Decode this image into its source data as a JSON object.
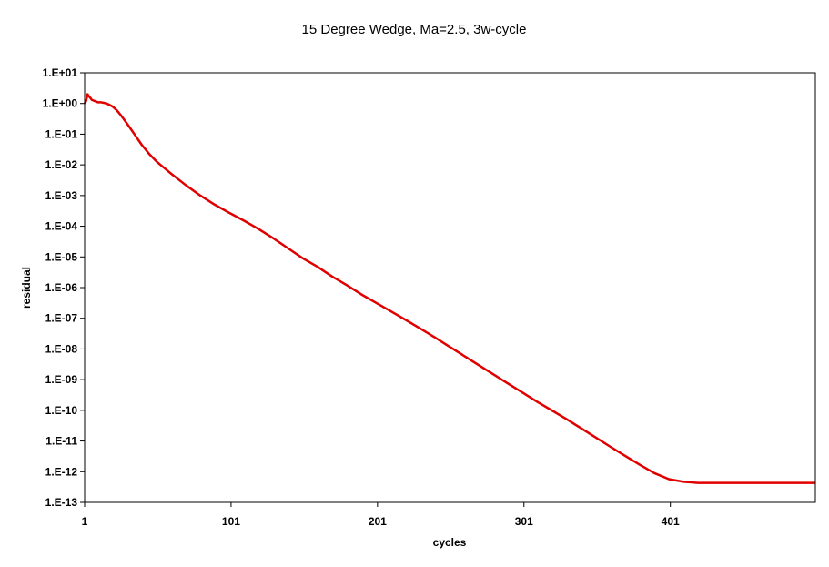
{
  "chart_data": {
    "type": "line",
    "title": "15 Degree Wedge, Ma=2.5, 3w-cycle",
    "xlabel": "cycles",
    "ylabel": "residual",
    "xlim": [
      1,
      500
    ],
    "x_ticks": [
      1,
      101,
      201,
      301,
      401
    ],
    "x_tick_labels": [
      "1",
      "101",
      "201",
      "301",
      "401"
    ],
    "y_scale": "log",
    "ylim": [
      1e-13,
      10
    ],
    "y_ticks": [
      10,
      1,
      0.1,
      0.01,
      0.001,
      0.0001,
      1e-05,
      1e-06,
      1e-07,
      1e-08,
      1e-09,
      1e-10,
      1e-11,
      1e-12,
      1e-13
    ],
    "y_tick_labels": [
      "1.E+01",
      "1.E+00",
      "1.E-01",
      "1.E-02",
      "1.E-03",
      "1.E-04",
      "1.E-05",
      "1.E-06",
      "1.E-07",
      "1.E-08",
      "1.E-09",
      "1.E-10",
      "1.E-11",
      "1.E-12",
      "1.E-13"
    ],
    "grid": false,
    "legend": "none",
    "series": [
      {
        "color": "#e00000",
        "x": [
          1,
          2,
          3,
          4,
          5,
          6,
          8,
          10,
          12,
          14,
          16,
          18,
          20,
          23,
          26,
          30,
          35,
          40,
          45,
          50,
          55,
          60,
          70,
          80,
          90,
          100,
          110,
          120,
          130,
          140,
          150,
          160,
          170,
          180,
          190,
          200,
          210,
          220,
          230,
          240,
          250,
          260,
          270,
          280,
          290,
          300,
          310,
          320,
          330,
          340,
          350,
          360,
          370,
          380,
          390,
          400,
          410,
          420,
          430,
          440,
          450,
          460,
          470,
          480,
          490,
          500
        ],
        "y": [
          1.0,
          1.2,
          2.0,
          1.7,
          1.5,
          1.3,
          1.2,
          1.1,
          1.1,
          1.05,
          1.0,
          0.9,
          0.8,
          0.6,
          0.4,
          0.22,
          0.1,
          0.045,
          0.023,
          0.013,
          0.0082,
          0.0052,
          0.0022,
          0.001,
          0.0005,
          0.00027,
          0.00015,
          8e-05,
          4e-05,
          1.9e-05,
          9e-06,
          4.8e-06,
          2.3e-06,
          1.2e-06,
          6e-07,
          3.2e-07,
          1.7e-07,
          9e-08,
          4.7e-08,
          2.4e-08,
          1.2e-08,
          6e-09,
          3e-09,
          1.5e-09,
          7.5e-10,
          3.8e-10,
          1.9e-10,
          1e-10,
          5.2e-11,
          2.6e-11,
          1.3e-11,
          6.5e-12,
          3.3e-12,
          1.7e-12,
          9e-13,
          5.7e-13,
          4.7e-13,
          4.3e-13,
          4.3e-13,
          4.3e-13,
          4.3e-13,
          4.3e-13,
          4.3e-13,
          4.3e-13,
          4.3e-13,
          4.3e-13
        ]
      }
    ]
  }
}
